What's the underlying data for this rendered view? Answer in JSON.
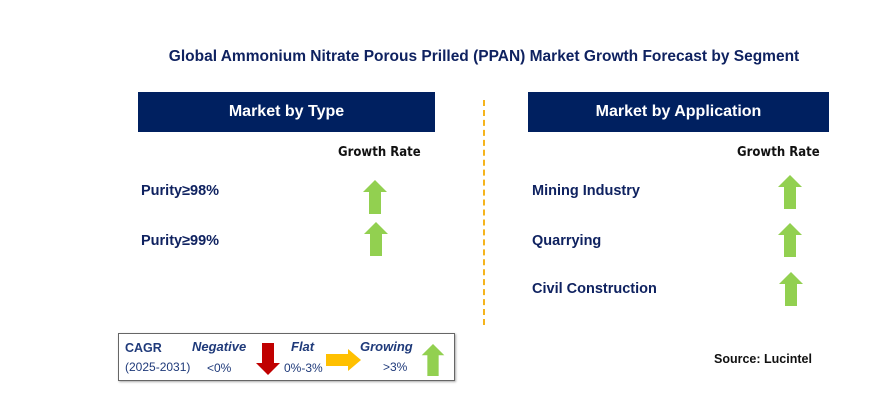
{
  "title": "Global Ammonium Nitrate Porous Prilled (PPAN) Market Growth Forecast by Segment",
  "left": {
    "header": "Market by Type",
    "growth_label": "Growth Rate",
    "items": [
      {
        "label": "Purity≥98%",
        "trend": "up"
      },
      {
        "label": "Purity≥99%",
        "trend": "up"
      }
    ]
  },
  "right": {
    "header": "Market by Application",
    "growth_label": "Growth Rate",
    "items": [
      {
        "label": "Mining Industry",
        "trend": "up"
      },
      {
        "label": "Quarrying",
        "trend": "up"
      },
      {
        "label": "Civil Construction",
        "trend": "up"
      }
    ]
  },
  "legend": {
    "cagr": "CAGR",
    "period": "(2025-2031)",
    "negative": "Negative",
    "negative_range": "<0%",
    "flat": "Flat",
    "flat_range": "0%-3%",
    "growing": "Growing",
    "growing_range": ">3%"
  },
  "source": "Source: Lucintel",
  "colors": {
    "header": "#002060",
    "up": "#92d050",
    "down": "#c00000",
    "flat": "#ffc000",
    "divider": "#f5b41c"
  }
}
